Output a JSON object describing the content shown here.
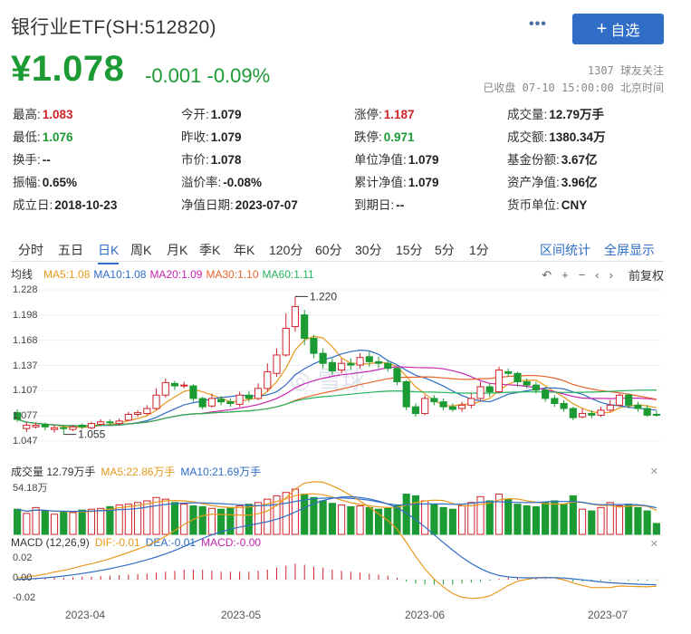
{
  "header": {
    "title": "银行业ETF(SH:512820)",
    "more_label": "•••",
    "add_label": "自选",
    "price": "¥1.078",
    "change": "-0.001 -0.09%",
    "followers": "1307 球友关注",
    "status": "已收盘 07-10 15:00:00 北京时间"
  },
  "quote": [
    [
      {
        "label": "最高:",
        "value": "1.083",
        "color": "up"
      },
      {
        "label": "今开:",
        "value": "1.079"
      },
      {
        "label": "涨停:",
        "value": "1.187",
        "color": "up"
      },
      {
        "label": "成交量:",
        "value": "12.79万手"
      }
    ],
    [
      {
        "label": "最低:",
        "value": "1.076",
        "color": "down"
      },
      {
        "label": "昨收:",
        "value": "1.079"
      },
      {
        "label": "跌停:",
        "value": "0.971",
        "color": "down"
      },
      {
        "label": "成交额:",
        "value": "1380.34万"
      }
    ],
    [
      {
        "label": "换手:",
        "value": "--"
      },
      {
        "label": "市价:",
        "value": "1.078"
      },
      {
        "label": "单位净值:",
        "value": "1.079"
      },
      {
        "label": "基金份额:",
        "value": "3.67亿"
      }
    ],
    [
      {
        "label": "振幅:",
        "value": "0.65%"
      },
      {
        "label": "溢价率:",
        "value": "-0.08%"
      },
      {
        "label": "累计净值:",
        "value": "1.079"
      },
      {
        "label": "资产净值:",
        "value": "3.96亿"
      }
    ],
    [
      {
        "label": "成立日:",
        "value": "2018-10-23"
      },
      {
        "label": "净值日期:",
        "value": "2023-07-07"
      },
      {
        "label": "到期日:",
        "value": "--"
      },
      {
        "label": "货币单位:",
        "value": "CNY"
      }
    ]
  ],
  "tabs": [
    "分时",
    "五日",
    "日K",
    "周K",
    "月K",
    "季K",
    "年K",
    "120分",
    "60分",
    "30分",
    "15分",
    "5分",
    "1分"
  ],
  "active_tab": "日K",
  "tab_links": [
    "区间统计",
    "全屏显示"
  ],
  "ma": {
    "label": "均线",
    "items": [
      {
        "text": "MA5:1.08",
        "color": "#e89a1e"
      },
      {
        "text": "MA10:1.08",
        "color": "#2f6dc6"
      },
      {
        "text": "MA20:1.09",
        "color": "#c724b1"
      },
      {
        "text": "MA30:1.10",
        "color": "#e8642c"
      },
      {
        "text": "MA60:1.11",
        "color": "#26b35a"
      }
    ]
  },
  "toolbar": {
    "icons": [
      "back-icon",
      "zoom-in-icon",
      "zoom-out-icon",
      "left-icon",
      "right-icon"
    ],
    "glyphs": [
      "↶",
      "+",
      "−",
      "‹",
      "›"
    ],
    "adjust_label": "前复权"
  },
  "price_axis": [
    "1.228",
    "1.198",
    "1.168",
    "1.137",
    "1.107",
    "1.077",
    "1.047"
  ],
  "annotations": {
    "high": "1.220",
    "low": "1.055"
  },
  "volume": {
    "items": [
      {
        "text": "成交量 12.79万手",
        "color": "#333"
      },
      {
        "text": "MA5:22.86万手",
        "color": "#e89a1e"
      },
      {
        "text": "MA10:21.69万手",
        "color": "#2f6dc6"
      }
    ],
    "axis_top": "54.18万"
  },
  "macd": {
    "items": [
      {
        "text": "MACD (12,26,9)",
        "color": "#333"
      },
      {
        "text": "DIF:-0.01",
        "color": "#e89a1e"
      },
      {
        "text": "DEA:-0.01",
        "color": "#2f6dc6"
      },
      {
        "text": "MACD:-0.00",
        "color": "#c724b1"
      }
    ],
    "axis": [
      "0.02",
      "0.00",
      "-0.02"
    ]
  },
  "dates": [
    "2023-04",
    "2023-05",
    "2023-06",
    "2023-07"
  ],
  "watermark": "雪球",
  "colors": {
    "up": "#d0232a",
    "down": "#1c9a33",
    "accent": "#2f6dc6"
  },
  "chart_data": {
    "type": "candlestick",
    "ylim": [
      1.047,
      1.228
    ],
    "candles": [
      [
        1.081,
        1.073,
        1.085,
        1.07
      ],
      [
        1.062,
        1.066,
        1.07,
        1.058
      ],
      [
        1.064,
        1.066,
        1.069,
        1.062
      ],
      [
        1.067,
        1.064,
        1.069,
        1.06
      ],
      [
        1.061,
        1.063,
        1.066,
        1.057
      ],
      [
        1.063,
        1.062,
        1.066,
        1.055
      ],
      [
        1.061,
        1.064,
        1.066,
        1.059
      ],
      [
        1.066,
        1.064,
        1.068,
        1.061
      ],
      [
        1.063,
        1.068,
        1.07,
        1.061
      ],
      [
        1.067,
        1.07,
        1.073,
        1.065
      ],
      [
        1.07,
        1.069,
        1.073,
        1.066
      ],
      [
        1.068,
        1.071,
        1.074,
        1.066
      ],
      [
        1.072,
        1.079,
        1.082,
        1.071
      ],
      [
        1.079,
        1.081,
        1.084,
        1.076
      ],
      [
        1.08,
        1.086,
        1.09,
        1.078
      ],
      [
        1.086,
        1.102,
        1.11,
        1.084
      ],
      [
        1.102,
        1.117,
        1.122,
        1.099
      ],
      [
        1.116,
        1.113,
        1.119,
        1.108
      ],
      [
        1.113,
        1.114,
        1.118,
        1.11
      ],
      [
        1.113,
        1.098,
        1.115,
        1.094
      ],
      [
        1.098,
        1.088,
        1.1,
        1.085
      ],
      [
        1.089,
        1.098,
        1.104,
        1.087
      ],
      [
        1.097,
        1.094,
        1.101,
        1.09
      ],
      [
        1.094,
        1.092,
        1.098,
        1.088
      ],
      [
        1.091,
        1.102,
        1.106,
        1.088
      ],
      [
        1.102,
        1.098,
        1.107,
        1.094
      ],
      [
        1.098,
        1.11,
        1.116,
        1.096
      ],
      [
        1.11,
        1.13,
        1.14,
        1.106
      ],
      [
        1.128,
        1.15,
        1.158,
        1.124
      ],
      [
        1.15,
        1.182,
        1.2,
        1.148
      ],
      [
        1.184,
        1.208,
        1.22,
        1.178
      ],
      [
        1.198,
        1.17,
        1.204,
        1.162
      ],
      [
        1.17,
        1.152,
        1.174,
        1.146
      ],
      [
        1.152,
        1.14,
        1.158,
        1.134
      ],
      [
        1.141,
        1.131,
        1.146,
        1.126
      ],
      [
        1.132,
        1.14,
        1.146,
        1.128
      ],
      [
        1.14,
        1.138,
        1.146,
        1.132
      ],
      [
        1.138,
        1.147,
        1.152,
        1.134
      ],
      [
        1.148,
        1.142,
        1.154,
        1.136
      ],
      [
        1.142,
        1.14,
        1.148,
        1.134
      ],
      [
        1.14,
        1.134,
        1.144,
        1.13
      ],
      [
        1.134,
        1.118,
        1.136,
        1.114
      ],
      [
        1.118,
        1.088,
        1.12,
        1.084
      ],
      [
        1.088,
        1.08,
        1.092,
        1.076
      ],
      [
        1.08,
        1.098,
        1.102,
        1.078
      ],
      [
        1.098,
        1.094,
        1.102,
        1.09
      ],
      [
        1.094,
        1.088,
        1.098,
        1.084
      ],
      [
        1.088,
        1.085,
        1.092,
        1.082
      ],
      [
        1.086,
        1.09,
        1.094,
        1.082
      ],
      [
        1.09,
        1.098,
        1.104,
        1.086
      ],
      [
        1.098,
        1.112,
        1.118,
        1.096
      ],
      [
        1.112,
        1.106,
        1.116,
        1.1
      ],
      [
        1.106,
        1.132,
        1.136,
        1.104
      ],
      [
        1.13,
        1.128,
        1.134,
        1.124
      ],
      [
        1.128,
        1.118,
        1.13,
        1.112
      ],
      [
        1.118,
        1.114,
        1.122,
        1.11
      ],
      [
        1.114,
        1.108,
        1.118,
        1.104
      ],
      [
        1.108,
        1.098,
        1.112,
        1.094
      ],
      [
        1.098,
        1.092,
        1.102,
        1.088
      ],
      [
        1.092,
        1.086,
        1.096,
        1.082
      ],
      [
        1.086,
        1.075,
        1.088,
        1.072
      ],
      [
        1.076,
        1.08,
        1.086,
        1.074
      ],
      [
        1.08,
        1.078,
        1.084,
        1.074
      ],
      [
        1.078,
        1.084,
        1.088,
        1.076
      ],
      [
        1.084,
        1.09,
        1.096,
        1.082
      ],
      [
        1.09,
        1.102,
        1.104,
        1.088
      ],
      [
        1.102,
        1.09,
        1.104,
        1.086
      ],
      [
        1.09,
        1.086,
        1.094,
        1.082
      ],
      [
        1.086,
        1.078,
        1.09,
        1.076
      ],
      [
        1.079,
        1.078,
        1.083,
        1.076
      ]
    ],
    "volumes": [
      30,
      25,
      32,
      28,
      24,
      27,
      26,
      29,
      30,
      31,
      33,
      35,
      36,
      38,
      40,
      44,
      42,
      38,
      36,
      34,
      33,
      31,
      30,
      32,
      34,
      36,
      38,
      42,
      46,
      50,
      54,
      48,
      44,
      40,
      37,
      35,
      33,
      34,
      32,
      30,
      31,
      34,
      48,
      46,
      40,
      36,
      32,
      30,
      34,
      38,
      45,
      40,
      48,
      42,
      36,
      34,
      33,
      38,
      40,
      36,
      46,
      30,
      28,
      32,
      38,
      34,
      36,
      32,
      28,
      13
    ],
    "macd_hist": [
      0.001,
      0.001,
      0.001,
      0.0015,
      0.002,
      0.002,
      0.0025,
      0.003,
      0.003,
      0.0035,
      0.004,
      0.0045,
      0.005,
      0.0055,
      0.006,
      0.007,
      0.008,
      0.009,
      0.01,
      0.01,
      0.01,
      0.009,
      0.008,
      0.008,
      0.008,
      0.008,
      0.009,
      0.01,
      0.012,
      0.014,
      0.016,
      0.015,
      0.013,
      0.012,
      0.01,
      0.009,
      0.008,
      0.007,
      0.006,
      0.005,
      0.004,
      0.002,
      -0.002,
      -0.004,
      -0.005,
      -0.005,
      -0.005,
      -0.005,
      -0.004,
      -0.003,
      -0.002,
      -0.001,
      0.001,
      0.002,
      0.002,
      0.001,
      0.001,
      0.0005,
      0.0,
      -0.001,
      -0.002,
      -0.002,
      -0.002,
      -0.001,
      -0.001,
      0.0,
      -0.001,
      -0.001,
      -0.001,
      -0.0005
    ]
  }
}
